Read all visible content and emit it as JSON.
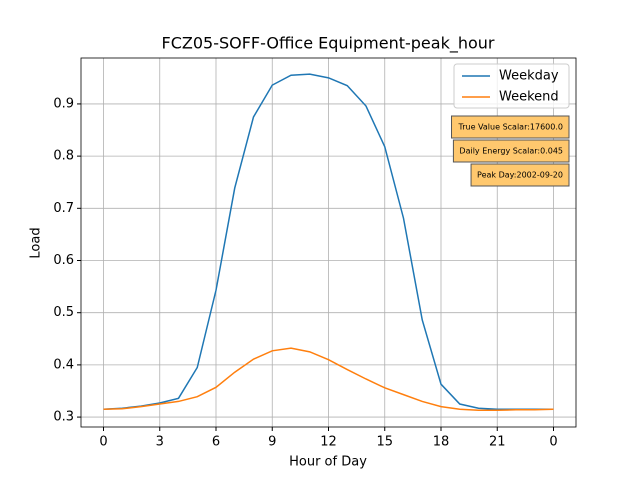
{
  "chart_data": {
    "type": "line",
    "title": "FCZ05-SOFF-Office Equipment-peak_hour",
    "x_label": "Hour of Day",
    "y_label": "Load",
    "x": [
      0,
      1,
      2,
      3,
      4,
      5,
      6,
      7,
      8,
      9,
      10,
      11,
      12,
      13,
      14,
      15,
      16,
      17,
      18,
      19,
      20,
      21,
      22,
      23,
      24
    ],
    "series": [
      {
        "name": "Weekday",
        "color": "#1f77b4",
        "values": [
          0.315,
          0.317,
          0.321,
          0.327,
          0.336,
          0.395,
          0.543,
          0.739,
          0.875,
          0.936,
          0.955,
          0.957,
          0.95,
          0.935,
          0.896,
          0.818,
          0.681,
          0.486,
          0.363,
          0.325,
          0.317,
          0.315,
          0.315,
          0.315,
          0.315
        ]
      },
      {
        "name": "Weekend",
        "color": "#ff7f0e",
        "values": [
          0.315,
          0.316,
          0.32,
          0.325,
          0.33,
          0.339,
          0.357,
          0.386,
          0.411,
          0.427,
          0.432,
          0.425,
          0.41,
          0.391,
          0.373,
          0.356,
          0.343,
          0.33,
          0.32,
          0.315,
          0.313,
          0.313,
          0.314,
          0.314,
          0.315
        ]
      }
    ],
    "xlim": [
      -1.2,
      25.2
    ],
    "xticks": [
      0,
      3,
      6,
      9,
      12,
      15,
      18,
      21,
      {
        "value": 24,
        "label": "0"
      }
    ],
    "ylim": [
      0.281,
      0.988
    ],
    "yticks": [
      0.3,
      0.4,
      0.5,
      0.6,
      0.7,
      0.8,
      0.9
    ],
    "grid": true,
    "legend": "upper right",
    "annotations": [
      "True Value Scalar:17600.0",
      "Daily Energy Scalar:0.045",
      "Peak Day:2002-09-20"
    ],
    "annotation_color": "#ffc86e"
  }
}
